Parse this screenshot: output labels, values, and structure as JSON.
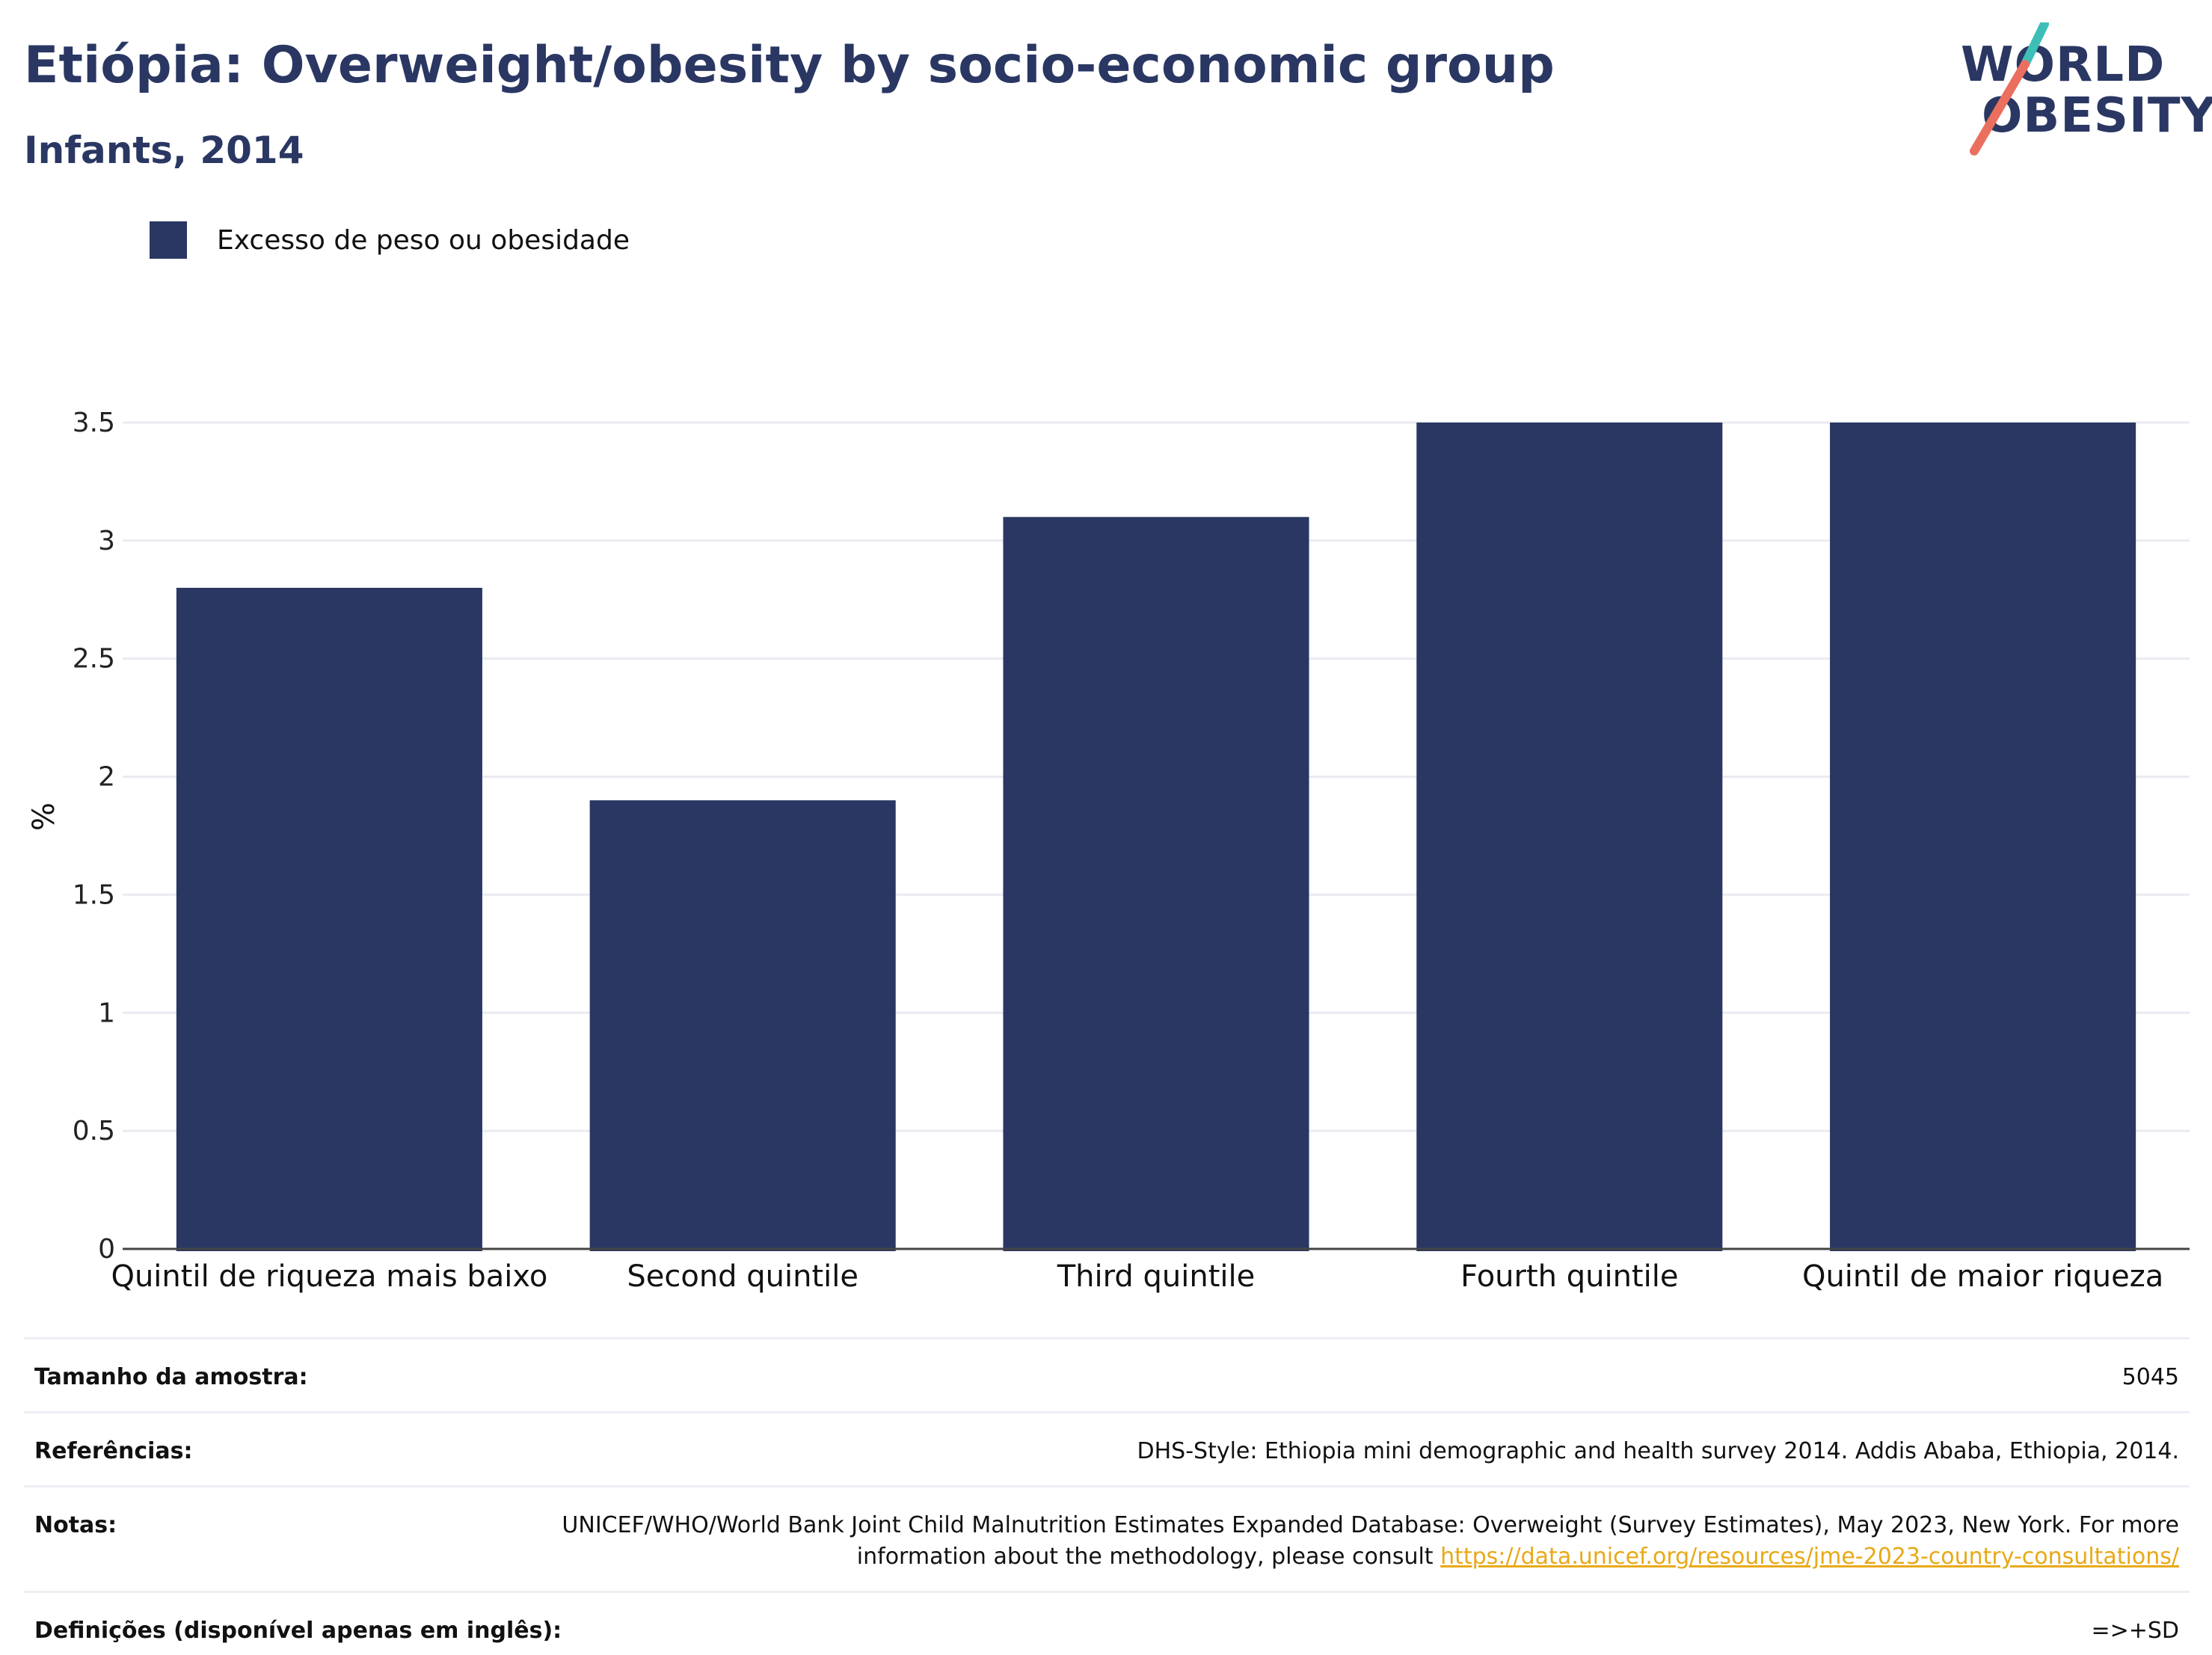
{
  "header": {
    "title": "Etiópia: Overweight/obesity by socio-economic group",
    "subtitle": "Infants, 2014"
  },
  "logo": {
    "line1": "WORLD",
    "line2": "OBESITY",
    "accent_teal": "#3dbfb8",
    "accent_coral": "#ea6f5e",
    "text_color": "#2a3763"
  },
  "legend": {
    "items": [
      {
        "label": "Excesso de peso ou obesidade",
        "color": "#2a3763"
      }
    ]
  },
  "chart_data": {
    "type": "bar",
    "categories": [
      "Quintil de riqueza mais baixo",
      "Second quintile",
      "Third quintile",
      "Fourth quintile",
      "Quintil de maior riqueza"
    ],
    "series": [
      {
        "name": "Excesso de peso ou obesidade",
        "values": [
          2.8,
          1.9,
          3.1,
          3.5,
          3.5
        ],
        "color": "#2a3763"
      }
    ],
    "ylabel": "%",
    "ylim": [
      0,
      3.5
    ],
    "yticks": [
      "0",
      "0.5",
      "1",
      "1.5",
      "2",
      "2.5",
      "3",
      "3.5"
    ],
    "grid": true,
    "legend_position": "top-left"
  },
  "info": {
    "rows": [
      {
        "key": "Tamanho da amostra:",
        "value": "5045"
      },
      {
        "key": "Referências:",
        "value": "DHS-Style: Ethiopia mini demographic and health survey 2014. Addis Ababa, Ethiopia, 2014."
      },
      {
        "key": "Notas:",
        "value": "UNICEF/WHO/World Bank Joint Child Malnutrition Estimates Expanded Database: Overweight (Survey Estimates), May 2023, New York. For more information about the methodology, please consult ",
        "link": "https://data.unicef.org/resources/jme-2023-country-consultations/"
      },
      {
        "key": "Definições (disponível apenas em inglês):",
        "value": "=>+SD"
      }
    ]
  }
}
